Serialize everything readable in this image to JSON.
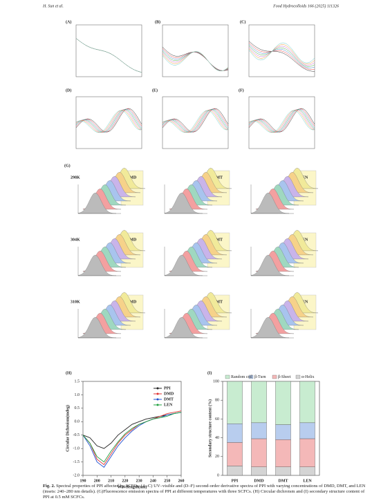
{
  "header": {
    "left": "H. Sun et al.",
    "right": "Food Hydrocolloids 166 (2025) 111326"
  },
  "panel_labels": [
    "(A)",
    "(B)",
    "(C)",
    "(D)",
    "(E)",
    "(F)",
    "(G)",
    "(H)",
    "(I)"
  ],
  "fluorescence": {
    "temperatures": [
      "298K",
      "304K",
      "310K"
    ],
    "drugs": [
      "DMD",
      "DMT",
      "LEN"
    ]
  },
  "caption": {
    "label": "Fig. 2.",
    "text": "Spectral properties of PPI affected by SCFCs. (A–C) UV–visible and (D–F) second-order derivative spectra of PPI with varying concentrations of DMD, DMT, and LEN (insets: 240–280 nm details). (G)Fluorescence emission spectra of PPI at different temperatures with three SCFCs. (H) Circular dichroism and (I) secondary structure content of PPI at 0.5 mM SCFCs."
  },
  "chart_data": [
    {
      "type": "line",
      "x_label": "Wavelength(nm)",
      "y_label": "Circular Dichroism(mdeg)",
      "x": [
        190,
        195,
        200,
        205,
        210,
        215,
        220,
        225,
        230,
        235,
        240,
        245,
        250,
        255,
        260
      ],
      "xlim": [
        190,
        260
      ],
      "xticks": [
        190,
        200,
        210,
        220,
        230,
        240,
        250,
        260
      ],
      "ylim": [
        -2.0,
        1.5
      ],
      "yticks": [
        {
          "value": -2.0,
          "label": "-2.0"
        },
        -1.5,
        {
          "value": -1.0,
          "label": "-1.0"
        },
        -0.5,
        {
          "value": 0.0,
          "label": "0.0"
        },
        0.5,
        {
          "value": 1.0,
          "label": "1.0"
        },
        1.5
      ],
      "series": [
        {
          "name": "PPI",
          "color": "#222222",
          "values": [
            -0.5,
            -0.6,
            -0.9,
            -1.0,
            -0.8,
            -0.5,
            -0.3,
            -0.1,
            0.0,
            0.1,
            0.15,
            0.2,
            0.25,
            0.3,
            0.35
          ]
        },
        {
          "name": "DMD",
          "color": "#e03030",
          "values": [
            -0.5,
            -0.8,
            -1.4,
            -1.6,
            -1.2,
            -0.8,
            -0.5,
            -0.3,
            -0.1,
            0.0,
            0.1,
            0.2,
            0.3,
            0.35,
            0.4
          ]
        },
        {
          "name": "DMT",
          "color": "#2050d0",
          "values": [
            -0.5,
            -0.9,
            -1.5,
            -1.7,
            -1.3,
            -0.9,
            -0.6,
            -0.35,
            -0.15,
            0.0,
            0.1,
            0.15,
            0.25,
            0.3,
            0.35
          ]
        },
        {
          "name": "LEN",
          "color": "#20a040",
          "values": [
            -0.5,
            -0.8,
            -1.3,
            -1.5,
            -1.1,
            -0.75,
            -0.45,
            -0.25,
            -0.1,
            0.0,
            0.1,
            0.15,
            0.2,
            0.3,
            0.35
          ]
        }
      ]
    },
    {
      "type": "stacked-bar",
      "y_label": "Secondary structure content (%)",
      "categories": [
        "PPI",
        "DMD",
        "DMT",
        "LEN"
      ],
      "ylim": [
        0,
        100
      ],
      "yticks": [
        0,
        20,
        40,
        60,
        80,
        100
      ],
      "series": [
        {
          "name": "α-Helix",
          "color": "#d4d4d4",
          "values": [
            10,
            9,
            9,
            9
          ]
        },
        {
          "name": "β-Sheet",
          "color": "#f4b8b8",
          "values": [
            25,
            30,
            29,
            30
          ]
        },
        {
          "name": "β-Turn",
          "color": "#b8cdee",
          "values": [
            20,
            17,
            16,
            17
          ]
        },
        {
          "name": "Random coil",
          "color": "#c8ecd0",
          "values": [
            45,
            44,
            46,
            44
          ]
        }
      ]
    }
  ]
}
